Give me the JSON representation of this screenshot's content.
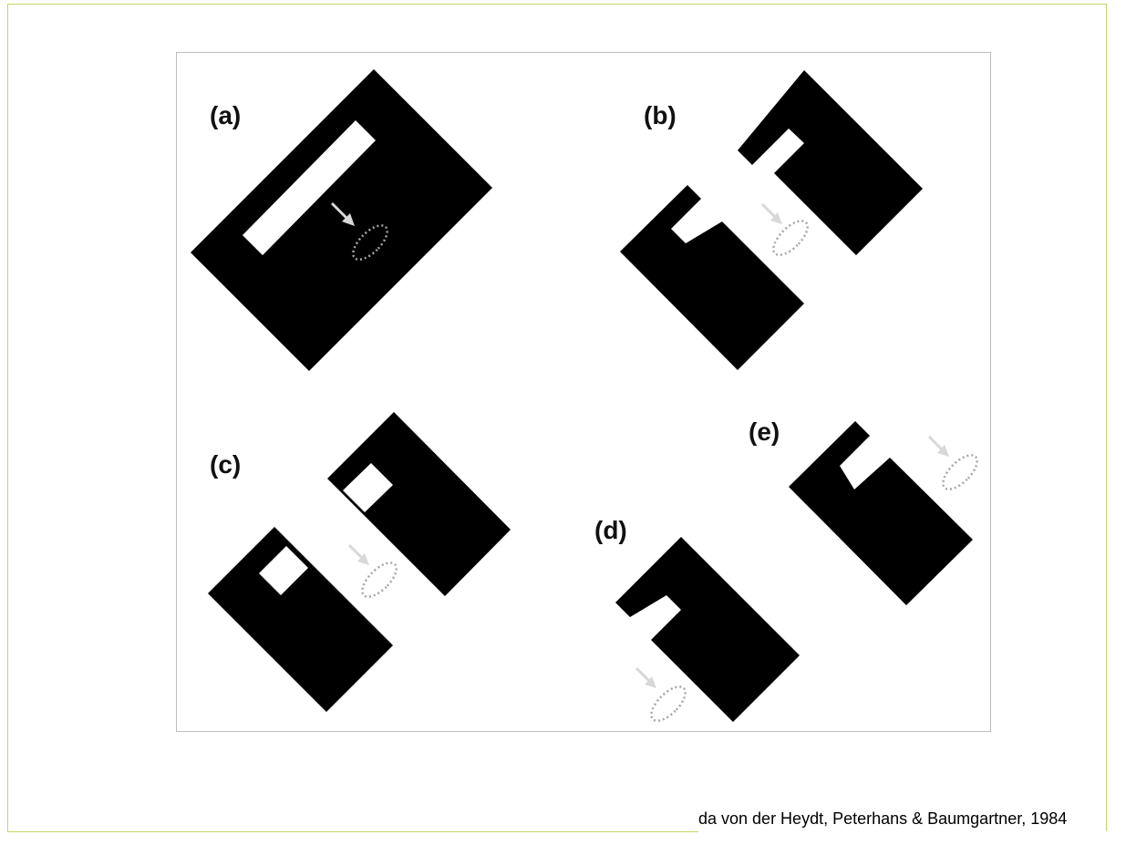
{
  "figure": {
    "panels": [
      {
        "id": "a",
        "label": "(a)"
      },
      {
        "id": "b",
        "label": "(b)"
      },
      {
        "id": "c",
        "label": "(c)"
      },
      {
        "id": "d",
        "label": "(d)"
      },
      {
        "id": "e",
        "label": "(e)"
      }
    ]
  },
  "credit": "da von der Heydt, Peterhans & Baumgartner, 1984",
  "colors": {
    "frame_border": "#c8d26a",
    "figure_border": "#bdbdbd",
    "shape_fill": "#000000",
    "receptive_field": "#a6a6a6",
    "arrow": "#bfbfbf"
  }
}
